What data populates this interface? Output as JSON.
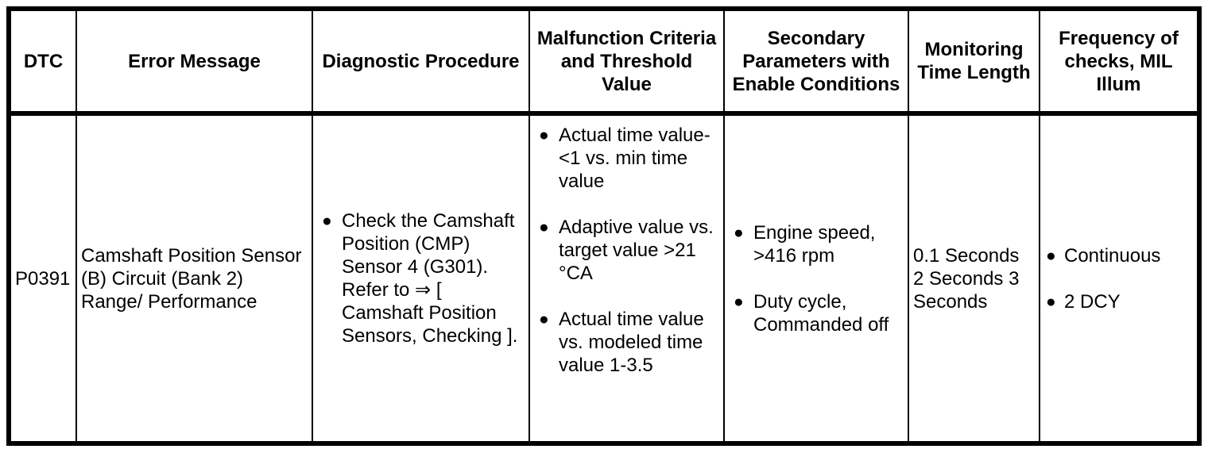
{
  "table": {
    "headers": {
      "dtc": "DTC",
      "error_message": "Error Message",
      "diagnostic_procedure": "Diagnostic Procedure",
      "malfunction_criteria": "Malfunction Criteria and Threshold Value",
      "secondary_parameters": "Secondary Parameters with Enable Conditions",
      "monitoring_time": "Monitoring Time Length",
      "frequency": "Frequency of checks, MIL Illum"
    },
    "row": {
      "dtc": "P0391",
      "error_message": "Camshaft Position Sensor (B) Circuit (Bank 2) Range/ Performance",
      "diagnostic_procedure": [
        "Check the Camshaft Position (CMP) Sensor 4 (G301). Refer to ⇒ [ Camshaft Position Sensors, Checking ]."
      ],
      "malfunction_criteria": [
        "Actual time value-<1 vs. min time value",
        "Adaptive value vs. target value >21 °CA",
        "Actual time value vs. modeled time value 1-3.5"
      ],
      "secondary_parameters": [
        "Engine speed, >416 rpm",
        "Duty cycle, Commanded off"
      ],
      "monitoring_time": "0.1 Seconds 2 Seconds 3 Seconds",
      "frequency": [
        "Continuous",
        "2 DCY"
      ]
    }
  },
  "glyphs": {
    "bullet": "●"
  },
  "colors": {
    "border": "#000000",
    "text": "#000000",
    "background": "#ffffff"
  }
}
